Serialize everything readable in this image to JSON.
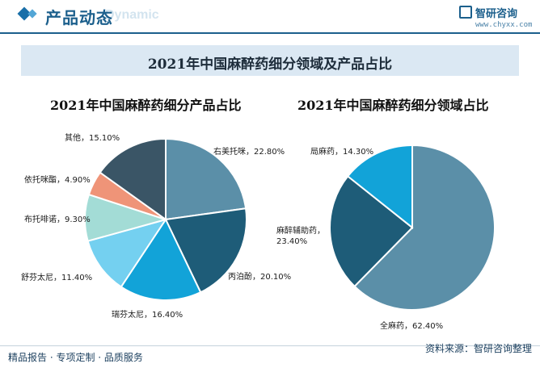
{
  "header": {
    "title": "产品动态",
    "subtitle": "Dynamic",
    "brand_name": "智研咨询",
    "brand_url": "www.chyxx.com"
  },
  "banner_title": "2021年中国麻醉药细分领域及产品占比",
  "chart_data": [
    {
      "type": "pie",
      "title": "2021年中国麻醉药细分产品占比",
      "slices": [
        {
          "label": "右美托咪",
          "value": 22.8,
          "display": "右美托咪，22.80%",
          "color": "#5b8fa8"
        },
        {
          "label": "丙泊酚",
          "value": 20.1,
          "display": "丙泊酚，20.10%",
          "color": "#1e5c78"
        },
        {
          "label": "瑞芬太尼",
          "value": 16.4,
          "display": "瑞芬太尼，16.40%",
          "color": "#12a3d8"
        },
        {
          "label": "舒芬太尼",
          "value": 11.4,
          "display": "舒芬太尼，11.40%",
          "color": "#74d0f0"
        },
        {
          "label": "布托啡诺",
          "value": 9.3,
          "display": "布托啡诺，9.30%",
          "color": "#a3dcd6"
        },
        {
          "label": "依托咪酯",
          "value": 4.9,
          "display": "依托咪酯，4.90%",
          "color": "#ef9478"
        },
        {
          "label": "其他",
          "value": 15.1,
          "display": "其他，15.10%",
          "color": "#3a5566"
        }
      ]
    },
    {
      "type": "pie",
      "title": "2021年中国麻醉药细分领域占比",
      "slices": [
        {
          "label": "全麻药",
          "value": 62.4,
          "display": "全麻药，62.40%",
          "color": "#5b8fa8"
        },
        {
          "label": "麻醉辅助药",
          "value": 23.4,
          "display": "麻醉辅助药，\n23.40%",
          "color": "#1e5c78"
        },
        {
          "label": "局麻药",
          "value": 14.3,
          "display": "局麻药，14.30%",
          "color": "#12a3d8"
        }
      ]
    }
  ],
  "footer": {
    "left": "精品报告 · 专项定制 · 品质服务",
    "right": "资料来源：智研咨询整理"
  }
}
